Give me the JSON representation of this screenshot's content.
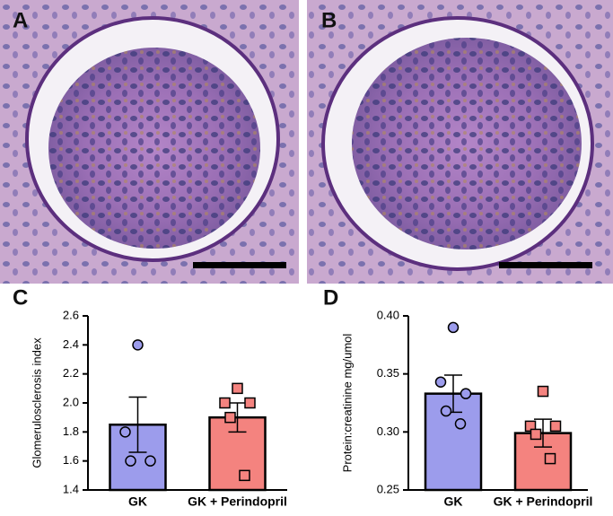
{
  "image_panels": [
    "A",
    "B"
  ],
  "chart_data": [
    {
      "type": "bar",
      "panel": "C",
      "ylabel": "Glomerulosclerosis index",
      "categories": [
        "GK",
        "GK + Perindopril"
      ],
      "values": [
        1.85,
        1.9
      ],
      "errors": [
        0.19,
        0.1
      ],
      "colors": [
        "#9c9cec",
        "#f4837f"
      ],
      "markers": [
        "circle",
        "square"
      ],
      "points": [
        [
          2.4,
          1.8,
          1.6,
          1.6
        ],
        [
          2.1,
          2.0,
          2.0,
          1.9,
          1.5
        ]
      ],
      "ylim": [
        1.4,
        2.6
      ],
      "yticks": [
        1.4,
        1.6,
        1.8,
        {
          "value": 2,
          "label": "2.0"
        },
        2.2,
        2.4,
        2.6
      ]
    },
    {
      "type": "bar",
      "panel": "D",
      "ylabel": "Protein:creatinine mg/umol",
      "categories": [
        "GK",
        "GK + Perindopril"
      ],
      "values": [
        0.333,
        0.299
      ],
      "errors": [
        0.016,
        0.012
      ],
      "colors": [
        "#9c9cec",
        "#f4837f"
      ],
      "markers": [
        "circle",
        "square"
      ],
      "points": [
        [
          0.39,
          0.343,
          0.333,
          0.318,
          0.307
        ],
        [
          0.335,
          0.305,
          0.305,
          0.298,
          0.277
        ]
      ],
      "ylim": [
        0.25,
        0.4
      ],
      "yticks": [
        0.25,
        {
          "value": 0.3,
          "label": "0.30"
        },
        0.35,
        {
          "value": 0.4,
          "label": "0.40"
        }
      ]
    }
  ]
}
